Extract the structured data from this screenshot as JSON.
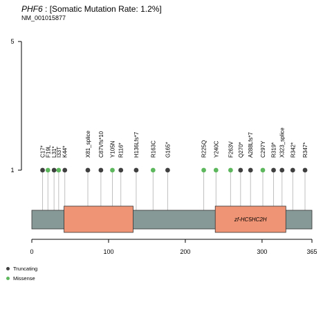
{
  "title": {
    "gene": "PHF6",
    "rate_text": " : [Somatic Mutation Rate: 1.2%]",
    "transcript": "NM_001015877"
  },
  "colors": {
    "truncating": "#404040",
    "missense": "#5db85d",
    "protein_bar": "#879996",
    "domain": "#ef9474",
    "stem": "#bfbfbf"
  },
  "chart_data": {
    "type": "lollipop",
    "x_axis": {
      "range": [
        0,
        365
      ],
      "ticks": [
        0,
        100,
        200,
        300,
        365
      ]
    },
    "y_axis": {
      "range": [
        0,
        5
      ],
      "ticks": [
        1,
        5
      ]
    },
    "protein_length": 365,
    "domains": [
      {
        "start": 42,
        "end": 132,
        "label": ""
      },
      {
        "start": 239,
        "end": 331,
        "label": "zf-HC5HC2H"
      }
    ],
    "mutations": [
      {
        "label": "C17*",
        "position": 14,
        "count": 1,
        "type": "Truncating"
      },
      {
        "label": "F19L",
        "position": 21,
        "count": 1,
        "type": "Missense"
      },
      {
        "label": "L31*",
        "position": 29,
        "count": 1,
        "type": "Truncating"
      },
      {
        "label": "I33T",
        "position": 35,
        "count": 1,
        "type": "Missense"
      },
      {
        "label": "K44*",
        "position": 43,
        "count": 1,
        "type": "Truncating"
      },
      {
        "label": "X81_splice",
        "position": 73,
        "count": 1,
        "type": "Truncating"
      },
      {
        "label": "C87Vfs*10",
        "position": 90,
        "count": 1,
        "type": "Truncating"
      },
      {
        "label": "Y105N",
        "position": 105,
        "count": 1,
        "type": "Missense"
      },
      {
        "label": "R116*",
        "position": 116,
        "count": 1,
        "type": "Truncating"
      },
      {
        "label": "H136Lfs*7",
        "position": 136,
        "count": 1,
        "type": "Truncating"
      },
      {
        "label": "R163C",
        "position": 158,
        "count": 1,
        "type": "Missense"
      },
      {
        "label": "G165*",
        "position": 177,
        "count": 1,
        "type": "Truncating"
      },
      {
        "label": "R225Q",
        "position": 224,
        "count": 1,
        "type": "Missense"
      },
      {
        "label": "Y240C",
        "position": 240,
        "count": 1,
        "type": "Missense"
      },
      {
        "label": "F263V",
        "position": 259,
        "count": 1,
        "type": "Missense"
      },
      {
        "label": "Q270*",
        "position": 272,
        "count": 1,
        "type": "Truncating"
      },
      {
        "label": "A288Lfs*7",
        "position": 285,
        "count": 1,
        "type": "Truncating"
      },
      {
        "label": "C297Y",
        "position": 301,
        "count": 1,
        "type": "Missense"
      },
      {
        "label": "R319*",
        "position": 315,
        "count": 1,
        "type": "Truncating"
      },
      {
        "label": "X323_splice",
        "position": 326,
        "count": 1,
        "type": "Truncating"
      },
      {
        "label": "R342*",
        "position": 340,
        "count": 1,
        "type": "Truncating"
      },
      {
        "label": "R347*",
        "position": 356,
        "count": 1,
        "type": "Truncating"
      }
    ],
    "legend": [
      {
        "label": "Truncating",
        "type": "Truncating"
      },
      {
        "label": "Missense",
        "type": "Missense"
      }
    ]
  }
}
